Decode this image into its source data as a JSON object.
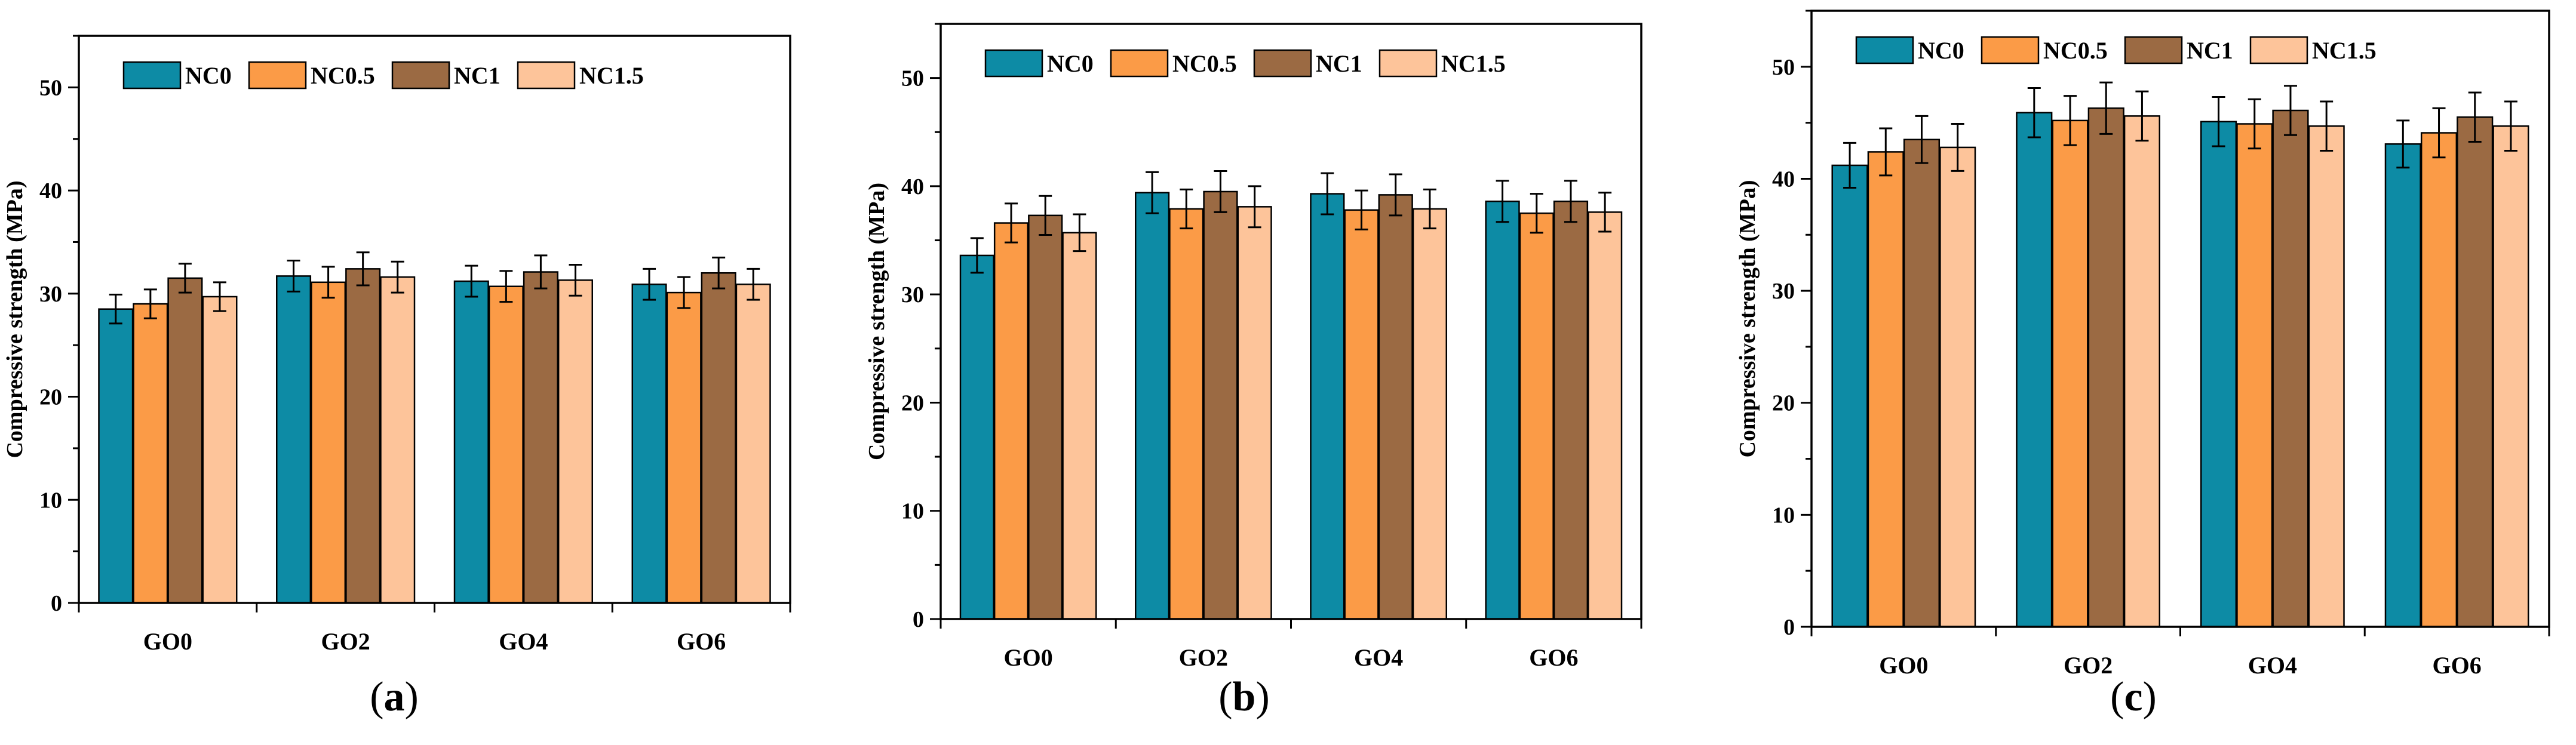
{
  "figure": {
    "series_colors": [
      "#0d8ba5",
      "#fb9b47",
      "#9b6a43",
      "#fdc49a"
    ],
    "ylabel": "Compressive strength (MPa)"
  },
  "chart_data": [
    {
      "type": "bar",
      "panel_label": "a",
      "ylabel": "Compressive strength (MPa)",
      "xlabel": "",
      "ylim": [
        0,
        55
      ],
      "yticks": [
        0,
        10,
        20,
        30,
        40,
        50
      ],
      "legend_position": "top-left",
      "categories": [
        "GO0",
        "GO2",
        "GO4",
        "GO6"
      ],
      "series": [
        {
          "name": "NC0",
          "values": [
            28.5,
            31.7,
            31.2,
            30.9
          ],
          "errors": [
            1.4,
            1.5,
            1.5,
            1.5
          ]
        },
        {
          "name": "NC0.5",
          "values": [
            29.0,
            31.1,
            30.7,
            30.1
          ],
          "errors": [
            1.4,
            1.5,
            1.5,
            1.5
          ]
        },
        {
          "name": "NC1",
          "values": [
            31.5,
            32.4,
            32.1,
            32.0
          ],
          "errors": [
            1.4,
            1.6,
            1.6,
            1.5
          ]
        },
        {
          "name": "NC1.5",
          "values": [
            29.7,
            31.6,
            31.3,
            30.9
          ],
          "errors": [
            1.4,
            1.5,
            1.5,
            1.5
          ]
        }
      ]
    },
    {
      "type": "bar",
      "panel_label": "b",
      "ylabel": "Compressive strength (MPa)",
      "xlabel": "",
      "ylim": [
        0,
        55
      ],
      "yticks": [
        0,
        10,
        20,
        30,
        40,
        50
      ],
      "legend_position": "top-left",
      "categories": [
        "GO0",
        "GO2",
        "GO4",
        "GO6"
      ],
      "series": [
        {
          "name": "NC0",
          "values": [
            33.6,
            39.4,
            39.3,
            38.6
          ],
          "errors": [
            1.6,
            1.9,
            1.9,
            1.9
          ]
        },
        {
          "name": "NC0.5",
          "values": [
            36.6,
            37.9,
            37.8,
            37.5
          ],
          "errors": [
            1.8,
            1.8,
            1.8,
            1.8
          ]
        },
        {
          "name": "NC1",
          "values": [
            37.3,
            39.5,
            39.2,
            38.6
          ],
          "errors": [
            1.8,
            1.9,
            1.9,
            1.9
          ]
        },
        {
          "name": "NC1.5",
          "values": [
            35.7,
            38.1,
            37.9,
            37.6
          ],
          "errors": [
            1.7,
            1.9,
            1.8,
            1.8
          ]
        }
      ]
    },
    {
      "type": "bar",
      "panel_label": "c",
      "ylabel": "Compressive strength (MPa)",
      "xlabel": "",
      "ylim": [
        0,
        55
      ],
      "yticks": [
        0,
        10,
        20,
        30,
        40,
        50
      ],
      "legend_position": "top-left",
      "categories": [
        "GO0",
        "GO2",
        "GO4",
        "GO6"
      ],
      "series": [
        {
          "name": "NC0",
          "values": [
            41.2,
            45.9,
            45.1,
            43.1
          ],
          "errors": [
            2.0,
            2.2,
            2.2,
            2.1
          ]
        },
        {
          "name": "NC0.5",
          "values": [
            42.4,
            45.2,
            44.9,
            44.1
          ],
          "errors": [
            2.1,
            2.2,
            2.2,
            2.2
          ]
        },
        {
          "name": "NC1",
          "values": [
            43.5,
            46.3,
            46.1,
            45.5
          ],
          "errors": [
            2.1,
            2.3,
            2.2,
            2.2
          ]
        },
        {
          "name": "NC1.5",
          "values": [
            42.8,
            45.6,
            44.7,
            44.7
          ],
          "errors": [
            2.1,
            2.2,
            2.2,
            2.2
          ]
        }
      ]
    }
  ]
}
